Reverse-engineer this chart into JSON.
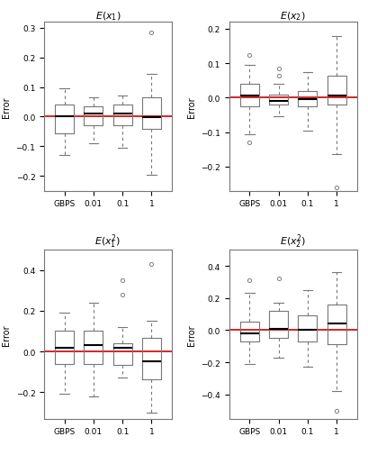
{
  "titles": [
    "E(x₁)",
    "E(x₂)",
    "E(x₁²)",
    "E(x₂²)"
  ],
  "xlabels": [
    "GBPS",
    "0.01",
    "0.1",
    "1"
  ],
  "ylabel": "Error",
  "hline_color": "#cc0000",
  "box_color": "#808080",
  "median_color": "#000000",
  "flier_color": "#808080",
  "subplot1": {
    "ylim": [
      -0.25,
      0.32
    ],
    "yticks": [
      -0.2,
      -0.1,
      0.0,
      0.1,
      0.2,
      0.3
    ],
    "boxes": [
      {
        "q1": -0.055,
        "median": 0.0,
        "q3": 0.04,
        "whislo": -0.13,
        "whishi": 0.095,
        "fliers": []
      },
      {
        "q1": -0.03,
        "median": 0.01,
        "q3": 0.035,
        "whislo": -0.09,
        "whishi": 0.065,
        "fliers": []
      },
      {
        "q1": -0.03,
        "median": 0.01,
        "q3": 0.04,
        "whislo": -0.105,
        "whishi": 0.07,
        "fliers": []
      },
      {
        "q1": -0.04,
        "median": -0.002,
        "q3": 0.065,
        "whislo": -0.195,
        "whishi": 0.145,
        "fliers": [
          0.285
        ]
      }
    ]
  },
  "subplot2": {
    "ylim": [
      -0.27,
      0.22
    ],
    "yticks": [
      -0.2,
      -0.1,
      0.0,
      0.1,
      0.2
    ],
    "boxes": [
      {
        "q1": -0.025,
        "median": 0.005,
        "q3": 0.04,
        "whislo": -0.105,
        "whishi": 0.095,
        "fliers": [
          -0.13,
          0.125
        ]
      },
      {
        "q1": -0.02,
        "median": -0.01,
        "q3": 0.01,
        "whislo": -0.055,
        "whishi": 0.04,
        "fliers": [
          0.065,
          0.085
        ]
      },
      {
        "q1": -0.025,
        "median": -0.005,
        "q3": 0.02,
        "whislo": -0.095,
        "whishi": 0.075,
        "fliers": []
      },
      {
        "q1": -0.02,
        "median": 0.005,
        "q3": 0.065,
        "whislo": -0.165,
        "whishi": 0.18,
        "fliers": [
          -0.26
        ]
      }
    ]
  },
  "subplot3": {
    "ylim": [
      -0.33,
      0.5
    ],
    "yticks": [
      -0.2,
      0.0,
      0.2,
      0.4
    ],
    "boxes": [
      {
        "q1": -0.06,
        "median": 0.02,
        "q3": 0.1,
        "whislo": -0.21,
        "whishi": 0.19,
        "fliers": []
      },
      {
        "q1": -0.06,
        "median": 0.03,
        "q3": 0.1,
        "whislo": -0.22,
        "whishi": 0.24,
        "fliers": []
      },
      {
        "q1": -0.065,
        "median": 0.02,
        "q3": 0.04,
        "whislo": -0.13,
        "whishi": 0.12,
        "fliers": [
          0.28,
          0.35
        ]
      },
      {
        "q1": -0.135,
        "median": -0.05,
        "q3": 0.065,
        "whislo": -0.3,
        "whishi": 0.15,
        "fliers": [
          0.43
        ]
      }
    ]
  },
  "subplot4": {
    "ylim": [
      -0.55,
      0.5
    ],
    "yticks": [
      -0.4,
      -0.2,
      0.0,
      0.2,
      0.4
    ],
    "boxes": [
      {
        "q1": -0.07,
        "median": -0.02,
        "q3": 0.055,
        "whislo": -0.21,
        "whishi": 0.23,
        "fliers": [
          0.31
        ]
      },
      {
        "q1": -0.05,
        "median": 0.01,
        "q3": 0.12,
        "whislo": -0.17,
        "whishi": 0.17,
        "fliers": [
          0.32
        ]
      },
      {
        "q1": -0.07,
        "median": 0.0,
        "q3": 0.09,
        "whislo": -0.23,
        "whishi": 0.25,
        "fliers": []
      },
      {
        "q1": -0.09,
        "median": 0.04,
        "q3": 0.16,
        "whislo": -0.38,
        "whishi": 0.36,
        "fliers": [
          -0.5
        ]
      }
    ]
  }
}
